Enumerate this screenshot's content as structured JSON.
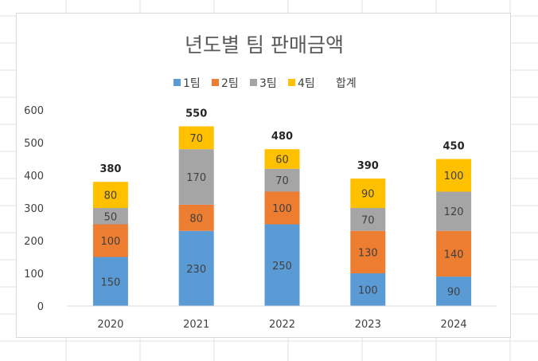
{
  "chart_data": {
    "type": "bar",
    "stacked": true,
    "title": "년도별 팀 판매금액",
    "categories": [
      "2020",
      "2021",
      "2022",
      "2023",
      "2024"
    ],
    "series": [
      {
        "name": "1팀",
        "color": "#5b9bd5",
        "values": [
          150,
          230,
          250,
          100,
          90
        ]
      },
      {
        "name": "2팀",
        "color": "#ed7d31",
        "values": [
          100,
          80,
          100,
          130,
          140
        ]
      },
      {
        "name": "3팀",
        "color": "#a5a5a5",
        "values": [
          50,
          170,
          70,
          70,
          120
        ]
      },
      {
        "name": "4팀",
        "color": "#ffc000",
        "values": [
          80,
          70,
          60,
          90,
          100
        ]
      }
    ],
    "totals": {
      "name": "합계",
      "values": [
        380,
        550,
        480,
        390,
        450
      ]
    },
    "yticks": [
      0,
      100,
      200,
      300,
      400,
      500,
      600
    ],
    "ylim": [
      0,
      600
    ],
    "xlabel": "",
    "ylabel": "",
    "legend_position": "top",
    "grid": false
  }
}
